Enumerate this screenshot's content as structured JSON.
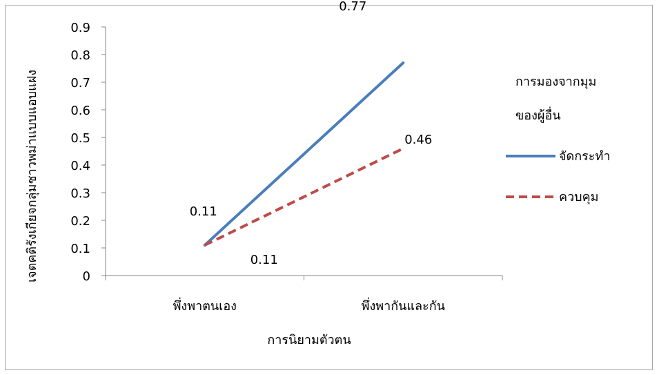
{
  "chart_data": {
    "type": "line",
    "categories": [
      "พึ่งพาตนเอง",
      "พึ่งพากันและกัน"
    ],
    "series": [
      {
        "name": "จัดกระทำ",
        "values": [
          0.11,
          0.77
        ],
        "color": "#4a7ebb",
        "dash": "solid"
      },
      {
        "name": "ควบคุม",
        "values": [
          0.11,
          0.46
        ],
        "color": "#be4b48",
        "dash": "dashed"
      }
    ],
    "data_labels": {
      "s0": [
        "0.11",
        "0.77"
      ],
      "s1": [
        "0.11",
        "0.46"
      ]
    },
    "ylim": [
      0,
      0.9
    ],
    "yticks": [
      "0",
      "0.1",
      "0.2",
      "0.3",
      "0.4",
      "0.5",
      "0.6",
      "0.7",
      "0.8",
      "0.9"
    ],
    "xlabel": "การนิยามตัวตน",
    "ylabel": "เจตคติรังเกียจกลุ่มชาวพม่าแบบแอบแฝง",
    "legend_title_line1": "การมองจากมุม",
    "legend_title_line2": "ของผู้อื่น",
    "legend_position": "right",
    "grid": false
  }
}
